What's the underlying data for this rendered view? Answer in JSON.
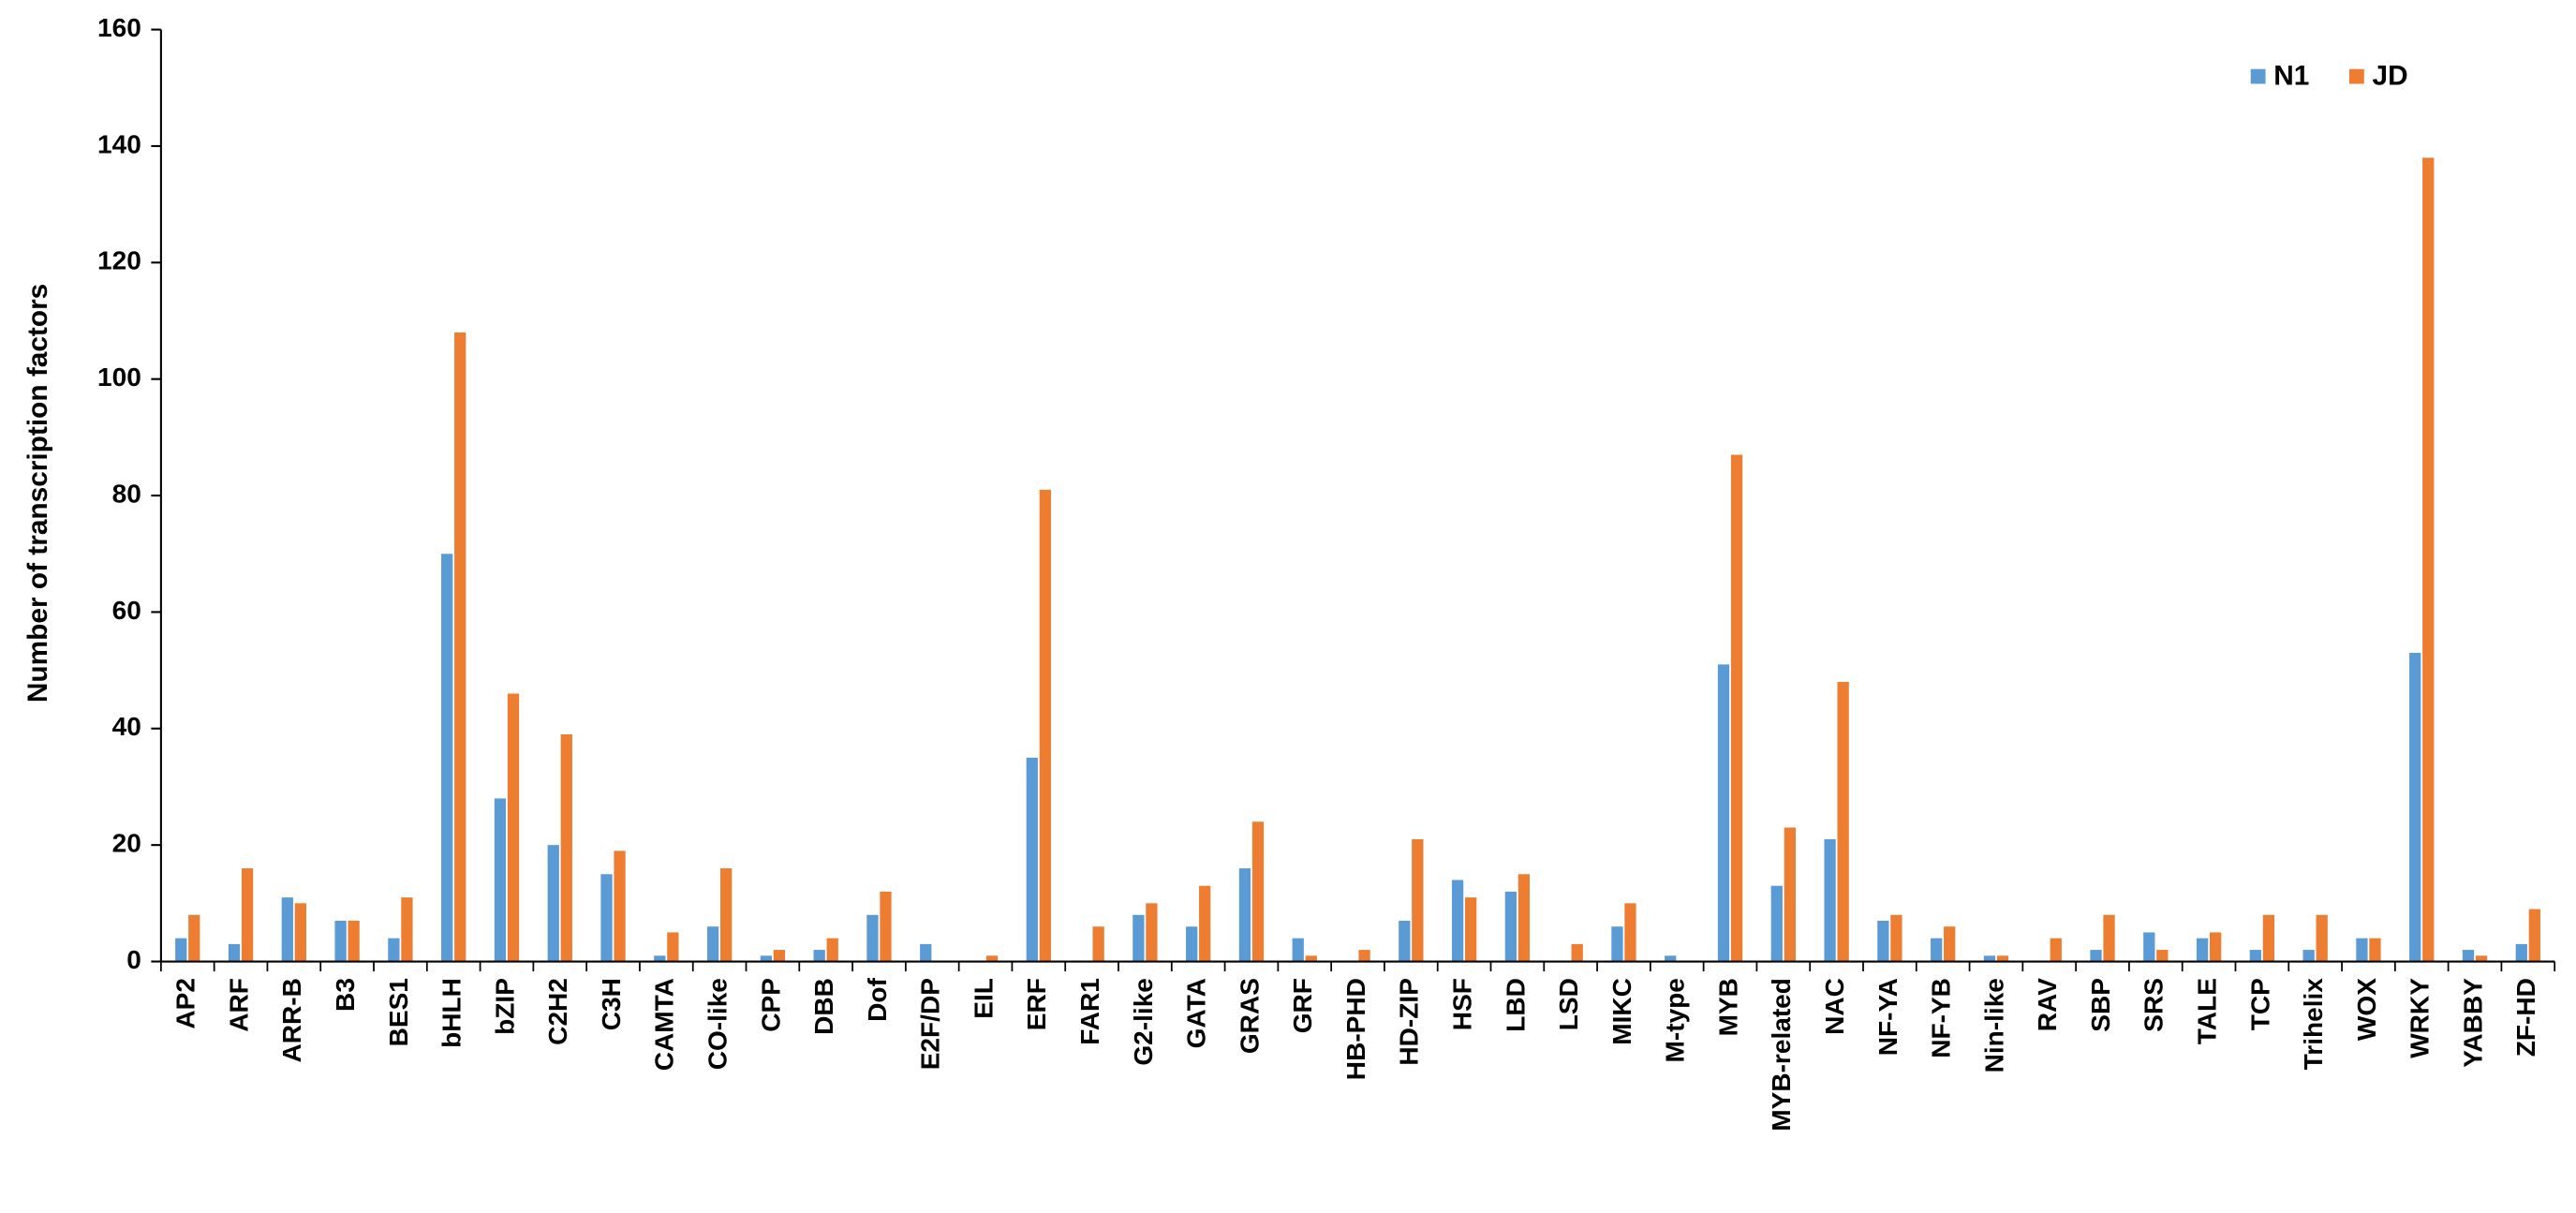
{
  "chart_data": {
    "type": "bar",
    "y_label": "Number of transcription factors",
    "categories": [
      "AP2",
      "ARF",
      "ARR-B",
      "B3",
      "BES1",
      "bHLH",
      "bZIP",
      "C2H2",
      "C3H",
      "CAMTA",
      "CO-like",
      "CPP",
      "DBB",
      "Dof",
      "E2F/DP",
      "EIL",
      "ERF",
      "FAR1",
      "G2-like",
      "GATA",
      "GRAS",
      "GRF",
      "HB-PHD",
      "HD-ZIP",
      "HSF",
      "LBD",
      "LSD",
      "MIKC",
      "M-type",
      "MYB",
      "MYB-related",
      "NAC",
      "NF-YA",
      "NF-YB",
      "Nin-like",
      "RAV",
      "SBP",
      "SRS",
      "TALE",
      "TCP",
      "Trihelix",
      "WOX",
      "WRKY",
      "YABBY",
      "ZF-HD"
    ],
    "series": [
      {
        "name": "N1",
        "color": "#5b9bd5",
        "values": [
          4,
          3,
          11,
          7,
          4,
          70,
          28,
          20,
          15,
          1,
          6,
          1,
          2,
          8,
          3,
          0,
          35,
          0,
          8,
          6,
          16,
          4,
          0,
          7,
          14,
          12,
          0,
          6,
          1,
          51,
          13,
          21,
          7,
          4,
          1,
          0,
          2,
          5,
          4,
          2,
          2,
          4,
          53,
          2,
          3
        ]
      },
      {
        "name": "JD",
        "color": "#ed7d31",
        "values": [
          8,
          16,
          10,
          7,
          11,
          108,
          46,
          39,
          19,
          5,
          16,
          2,
          4,
          12,
          0,
          1,
          81,
          6,
          10,
          13,
          24,
          1,
          2,
          21,
          11,
          15,
          3,
          10,
          0,
          87,
          23,
          48,
          8,
          6,
          1,
          4,
          8,
          2,
          5,
          8,
          8,
          4,
          138,
          1,
          9
        ]
      }
    ],
    "ylim": [
      0,
      160
    ],
    "yticks": [
      0,
      20,
      40,
      60,
      80,
      100,
      120,
      140,
      160
    ],
    "grid": false,
    "legend": "top-right"
  }
}
